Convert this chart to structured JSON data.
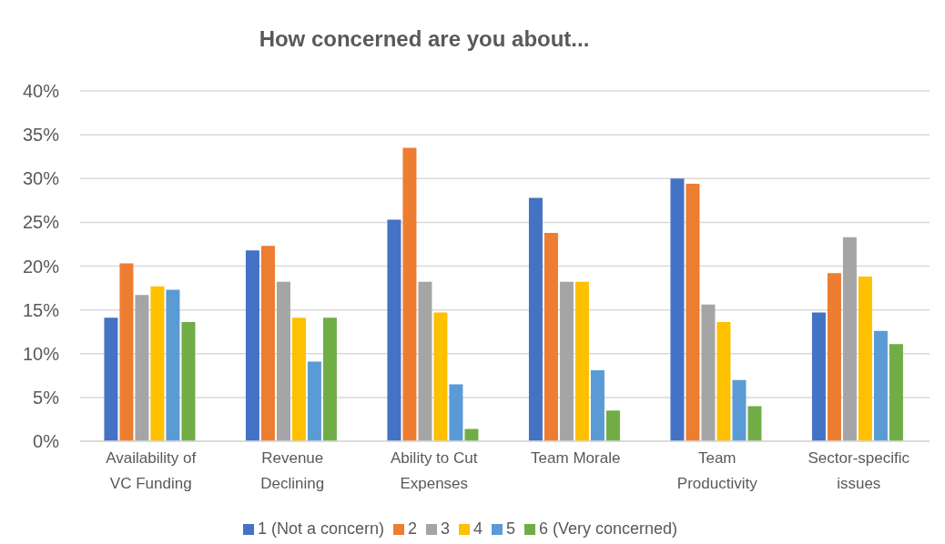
{
  "chart_data": {
    "type": "bar",
    "title": "How concerned are you about...",
    "categories": [
      "Availability of VC Funding",
      "Revenue Declining",
      "Ability to Cut Expenses",
      "Team Morale",
      "Team Productivity",
      "Sector-specific issues"
    ],
    "series": [
      {
        "name": "1 (Not a concern)",
        "color": "#4472c4",
        "values": [
          14.1,
          21.8,
          25.3,
          27.8,
          30.0,
          14.7
        ]
      },
      {
        "name": "2",
        "color": "#ed7d31",
        "values": [
          20.3,
          22.3,
          33.5,
          23.8,
          29.4,
          19.2
        ]
      },
      {
        "name": "3",
        "color": "#a5a5a5",
        "values": [
          16.7,
          18.2,
          18.2,
          18.2,
          15.6,
          23.3
        ]
      },
      {
        "name": "4",
        "color": "#ffc000",
        "values": [
          17.7,
          14.1,
          14.7,
          18.2,
          13.6,
          18.8
        ]
      },
      {
        "name": "5",
        "color": "#5b9bd5",
        "values": [
          17.3,
          9.1,
          6.5,
          8.1,
          7.0,
          12.6
        ]
      },
      {
        "name": "6 (Very concerned)",
        "color": "#70ad47",
        "values": [
          13.6,
          14.1,
          1.4,
          3.5,
          4.0,
          11.1
        ]
      }
    ],
    "ylim": [
      0,
      40
    ],
    "yticks": [
      {
        "value": 0,
        "label": "0%"
      },
      {
        "value": 5,
        "label": "5%"
      },
      {
        "value": 10,
        "label": "10%"
      },
      {
        "value": 15,
        "label": "15%"
      },
      {
        "value": 20,
        "label": "20%"
      },
      {
        "value": 25,
        "label": "25%"
      },
      {
        "value": 30,
        "label": "30%"
      },
      {
        "value": 35,
        "label": "35%"
      },
      {
        "value": 40,
        "label": "40%"
      }
    ],
    "grid": "y",
    "legend": "bottom"
  }
}
